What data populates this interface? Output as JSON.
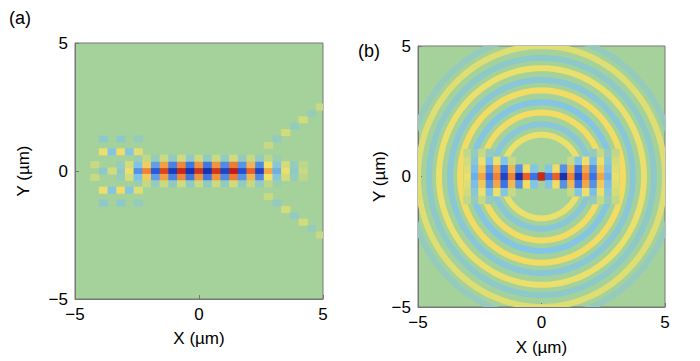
{
  "chart_data": [
    {
      "type": "heatmap",
      "title": "(a)",
      "x_label": "X (µm)",
      "y_label": "Y (µm)",
      "xlim": [
        -5,
        5
      ],
      "ylim": [
        -5,
        5
      ],
      "xticks": [
        {
          "value": -5,
          "label": "−5"
        },
        0,
        5
      ],
      "yticks": [
        {
          "value": -5,
          "label": "−5"
        },
        0,
        5
      ],
      "grid": false,
      "zlim": [
        -1,
        1
      ],
      "cell_width": 0.35,
      "cell_height": 0.25,
      "cells": [
        [
          -3.15,
          0,
          -0.2
        ],
        [
          -2.8,
          0,
          0.3
        ],
        [
          -2.45,
          0,
          -0.5
        ],
        [
          -2.1,
          0,
          0.6
        ],
        [
          -1.75,
          0,
          -0.7
        ],
        [
          -1.4,
          0,
          0.8
        ],
        [
          -1.05,
          0,
          -0.85
        ],
        [
          -0.7,
          0,
          0.9
        ],
        [
          -0.35,
          0,
          -0.9
        ],
        [
          0,
          0,
          0.85
        ],
        [
          0.35,
          0,
          -0.9
        ],
        [
          0.7,
          0,
          0.85
        ],
        [
          1.05,
          0,
          -0.8
        ],
        [
          1.4,
          0,
          0.95
        ],
        [
          1.75,
          0,
          -0.75
        ],
        [
          2.1,
          0,
          0.7
        ],
        [
          2.45,
          0,
          -0.8
        ],
        [
          2.8,
          0,
          0.5
        ],
        [
          3.15,
          0,
          -0.4
        ],
        [
          3.5,
          0,
          0.3
        ],
        [
          3.85,
          0,
          -0.2
        ],
        [
          4.2,
          0,
          0.15
        ],
        [
          -3.15,
          0.25,
          -0.13
        ],
        [
          -2.8,
          0.25,
          0.2
        ],
        [
          -2.45,
          0.25,
          -0.33
        ],
        [
          -2.1,
          0.25,
          0.39
        ],
        [
          -1.75,
          0.25,
          -0.46
        ],
        [
          -1.4,
          0.25,
          0.52
        ],
        [
          -1.05,
          0.25,
          -0.55
        ],
        [
          -0.7,
          0.25,
          0.59
        ],
        [
          -0.35,
          0.25,
          -0.59
        ],
        [
          0,
          0.25,
          0.55
        ],
        [
          0.35,
          0.25,
          -0.59
        ],
        [
          0.7,
          0.25,
          0.55
        ],
        [
          1.05,
          0.25,
          -0.52
        ],
        [
          1.4,
          0.25,
          0.62
        ],
        [
          1.75,
          0.25,
          -0.49
        ],
        [
          2.1,
          0.25,
          0.46
        ],
        [
          2.45,
          0.25,
          -0.52
        ],
        [
          2.8,
          0.25,
          0.33
        ],
        [
          3.15,
          0.25,
          -0.26
        ],
        [
          3.5,
          0.25,
          0.2
        ],
        [
          3.85,
          0.25,
          -0.13
        ],
        [
          4.2,
          0.25,
          0.1
        ],
        [
          -3.15,
          -0.25,
          -0.13
        ],
        [
          -2.8,
          -0.25,
          0.2
        ],
        [
          -2.45,
          -0.25,
          -0.33
        ],
        [
          -2.1,
          -0.25,
          0.39
        ],
        [
          -1.75,
          -0.25,
          -0.46
        ],
        [
          -1.4,
          -0.25,
          0.52
        ],
        [
          -1.05,
          -0.25,
          -0.55
        ],
        [
          -0.7,
          -0.25,
          0.59
        ],
        [
          -0.35,
          -0.25,
          -0.59
        ],
        [
          0,
          -0.25,
          0.55
        ],
        [
          0.35,
          -0.25,
          -0.59
        ],
        [
          0.7,
          -0.25,
          0.55
        ],
        [
          1.05,
          -0.25,
          -0.52
        ],
        [
          1.4,
          -0.25,
          0.62
        ],
        [
          1.75,
          -0.25,
          -0.49
        ],
        [
          2.1,
          -0.25,
          0.46
        ],
        [
          2.45,
          -0.25,
          -0.52
        ],
        [
          2.8,
          -0.25,
          0.33
        ],
        [
          3.15,
          -0.25,
          -0.26
        ],
        [
          3.5,
          -0.25,
          0.2
        ],
        [
          3.85,
          -0.25,
          -0.13
        ],
        [
          4.2,
          -0.25,
          0.1
        ],
        [
          -2.45,
          0.5,
          -0.1
        ],
        [
          -2.1,
          0.5,
          0.12
        ],
        [
          -1.75,
          0.5,
          -0.14
        ],
        [
          -1.4,
          0.5,
          0.16
        ],
        [
          -1.05,
          0.5,
          -0.17
        ],
        [
          -0.7,
          0.5,
          0.18
        ],
        [
          -0.35,
          0.5,
          -0.18
        ],
        [
          0,
          0.5,
          0.17
        ],
        [
          0.35,
          0.5,
          -0.18
        ],
        [
          0.7,
          0.5,
          0.17
        ],
        [
          1.05,
          0.5,
          -0.16
        ],
        [
          1.4,
          0.5,
          0.19
        ],
        [
          1.75,
          0.5,
          -0.15
        ],
        [
          2.1,
          0.5,
          0.14
        ],
        [
          2.45,
          0.5,
          -0.16
        ],
        [
          2.8,
          0.5,
          0.1
        ],
        [
          3.15,
          0.5,
          -0.08
        ],
        [
          -2.45,
          -0.5,
          -0.1
        ],
        [
          -2.1,
          -0.5,
          0.12
        ],
        [
          -1.75,
          -0.5,
          -0.14
        ],
        [
          -1.4,
          -0.5,
          0.16
        ],
        [
          -1.05,
          -0.5,
          -0.17
        ],
        [
          -0.7,
          -0.5,
          0.18
        ],
        [
          -0.35,
          -0.5,
          -0.18
        ],
        [
          0,
          -0.5,
          0.17
        ],
        [
          0.35,
          -0.5,
          -0.18
        ],
        [
          0.7,
          -0.5,
          0.17
        ],
        [
          1.05,
          -0.5,
          -0.16
        ],
        [
          1.4,
          -0.5,
          0.19
        ],
        [
          1.75,
          -0.5,
          -0.15
        ],
        [
          2.1,
          -0.5,
          0.14
        ],
        [
          2.45,
          -0.5,
          -0.16
        ],
        [
          2.8,
          -0.5,
          0.1
        ],
        [
          3.15,
          -0.5,
          -0.08
        ],
        [
          -4.2,
          0.25,
          0.15
        ],
        [
          -4.2,
          -0.25,
          0.15
        ],
        [
          -3.85,
          0,
          -0.2
        ],
        [
          -3.5,
          0,
          0.2
        ],
        [
          -3.85,
          0.75,
          0.3
        ],
        [
          -3.5,
          0.75,
          -0.3
        ],
        [
          -3.15,
          0.75,
          0.35
        ],
        [
          -2.8,
          0.75,
          -0.3
        ],
        [
          -2.45,
          0.75,
          0.25
        ],
        [
          -3.85,
          -0.75,
          0.3
        ],
        [
          -3.5,
          -0.75,
          -0.3
        ],
        [
          -3.15,
          -0.75,
          0.35
        ],
        [
          -2.8,
          -0.75,
          -0.3
        ],
        [
          -2.45,
          -0.75,
          0.25
        ],
        [
          -3.85,
          1.25,
          -0.2
        ],
        [
          -3.15,
          1.25,
          -0.2
        ],
        [
          -2.45,
          1.25,
          -0.15
        ],
        [
          -3.85,
          -1.25,
          -0.2
        ],
        [
          -3.15,
          -1.25,
          -0.2
        ],
        [
          -2.45,
          -1.25,
          -0.15
        ],
        [
          2.8,
          1,
          0.15
        ],
        [
          3.15,
          1.25,
          -0.15
        ],
        [
          3.5,
          1.5,
          0.2
        ],
        [
          3.85,
          1.75,
          -0.15
        ],
        [
          4.2,
          2,
          0.2
        ],
        [
          4.55,
          2.25,
          -0.12
        ],
        [
          4.9,
          2.5,
          0.15
        ],
        [
          2.8,
          -1,
          0.15
        ],
        [
          3.15,
          -1.25,
          -0.15
        ],
        [
          3.5,
          -1.5,
          0.2
        ],
        [
          3.85,
          -1.75,
          -0.15
        ],
        [
          4.2,
          -2,
          0.2
        ],
        [
          4.55,
          -2.25,
          -0.12
        ],
        [
          4.9,
          -2.5,
          0.15
        ]
      ]
    },
    {
      "type": "heatmap",
      "title": "(b)",
      "x_label": "X (µm)",
      "y_label": "Y (µm)",
      "xlim": [
        -5,
        5
      ],
      "ylim": [
        -5,
        5
      ],
      "xticks": [
        {
          "value": -5,
          "label": "−5"
        },
        0,
        5
      ],
      "yticks": [
        {
          "value": -5,
          "label": "−5"
        },
        0,
        5
      ],
      "grid": false,
      "zlim": [
        -1,
        1
      ],
      "cell_width": 0.3,
      "cell_height": 0.3,
      "ring_center": [
        0,
        0
      ],
      "rings": [
        {
          "radius": 1.6,
          "value": 0.3
        },
        {
          "radius": 2.0,
          "value": -0.25
        },
        {
          "radius": 2.45,
          "value": 0.35
        },
        {
          "radius": 2.85,
          "value": -0.3
        },
        {
          "radius": 3.3,
          "value": 0.35
        },
        {
          "radius": 3.7,
          "value": -0.25
        },
        {
          "radius": 4.15,
          "value": 0.3
        },
        {
          "radius": 4.55,
          "value": -0.2
        },
        {
          "radius": 5.0,
          "value": 0.25
        },
        {
          "radius": 5.4,
          "value": -0.15
        }
      ],
      "cells": [
        [
          -3,
          0,
          0.3
        ],
        [
          -2.7,
          0,
          -0.4
        ],
        [
          -2.4,
          0,
          0.5
        ],
        [
          -2.1,
          0,
          -0.6
        ],
        [
          -1.8,
          0,
          0.6
        ],
        [
          -1.5,
          0,
          -0.8
        ],
        [
          -1.2,
          0,
          0.6
        ],
        [
          -0.9,
          0,
          -0.9
        ],
        [
          -0.6,
          0,
          0.7
        ],
        [
          -0.3,
          0,
          -0.6
        ],
        [
          0,
          0,
          0.9
        ],
        [
          0.3,
          0,
          -0.6
        ],
        [
          0.6,
          0,
          0.7
        ],
        [
          0.9,
          0,
          -0.9
        ],
        [
          1.2,
          0,
          0.6
        ],
        [
          1.5,
          0,
          -0.8
        ],
        [
          1.8,
          0,
          0.6
        ],
        [
          2.1,
          0,
          -0.6
        ],
        [
          2.4,
          0,
          0.5
        ],
        [
          2.7,
          0,
          -0.4
        ],
        [
          3,
          0,
          0.3
        ],
        [
          -3,
          0.3,
          0.25
        ],
        [
          -2.7,
          0.3,
          -0.35
        ],
        [
          -2.4,
          0.3,
          0.4
        ],
        [
          -2.1,
          0.3,
          -0.5
        ],
        [
          -1.8,
          0.3,
          0.5
        ],
        [
          -1.5,
          0.3,
          -0.6
        ],
        [
          -1.2,
          0.3,
          0.45
        ],
        [
          -0.9,
          0.3,
          -0.5
        ],
        [
          -0.6,
          0.3,
          0.35
        ],
        [
          -0.3,
          0.3,
          -0.3
        ],
        [
          0.3,
          0.3,
          -0.3
        ],
        [
          0.6,
          0.3,
          0.35
        ],
        [
          0.9,
          0.3,
          -0.5
        ],
        [
          1.2,
          0.3,
          0.45
        ],
        [
          1.5,
          0.3,
          -0.6
        ],
        [
          1.8,
          0.3,
          0.5
        ],
        [
          2.1,
          0.3,
          -0.5
        ],
        [
          2.4,
          0.3,
          0.4
        ],
        [
          2.7,
          0.3,
          -0.35
        ],
        [
          3,
          0.3,
          0.25
        ],
        [
          -3,
          -0.3,
          0.25
        ],
        [
          -2.7,
          -0.3,
          -0.35
        ],
        [
          -2.4,
          -0.3,
          0.4
        ],
        [
          -2.1,
          -0.3,
          -0.5
        ],
        [
          -1.8,
          -0.3,
          0.5
        ],
        [
          -1.5,
          -0.3,
          -0.6
        ],
        [
          -1.2,
          -0.3,
          0.45
        ],
        [
          -0.9,
          -0.3,
          -0.5
        ],
        [
          -0.6,
          -0.3,
          0.35
        ],
        [
          -0.3,
          -0.3,
          -0.3
        ],
        [
          0.3,
          -0.3,
          -0.3
        ],
        [
          0.6,
          -0.3,
          0.35
        ],
        [
          0.9,
          -0.3,
          -0.5
        ],
        [
          1.2,
          -0.3,
          0.45
        ],
        [
          1.5,
          -0.3,
          -0.6
        ],
        [
          1.8,
          -0.3,
          0.5
        ],
        [
          2.1,
          -0.3,
          -0.5
        ],
        [
          2.4,
          -0.3,
          0.4
        ],
        [
          2.7,
          -0.3,
          -0.35
        ],
        [
          3,
          -0.3,
          0.25
        ],
        [
          -3,
          0.6,
          0.2
        ],
        [
          -2.7,
          0.6,
          -0.25
        ],
        [
          -2.4,
          0.6,
          0.3
        ],
        [
          -2.1,
          0.6,
          -0.35
        ],
        [
          -1.8,
          0.6,
          0.3
        ],
        [
          -1.5,
          0.6,
          -0.3
        ],
        [
          -1.2,
          0.6,
          0.15
        ],
        [
          1.2,
          0.6,
          0.15
        ],
        [
          1.5,
          0.6,
          -0.3
        ],
        [
          1.8,
          0.6,
          0.3
        ],
        [
          2.1,
          0.6,
          -0.35
        ],
        [
          2.4,
          0.6,
          0.3
        ],
        [
          2.7,
          0.6,
          -0.25
        ],
        [
          3,
          0.6,
          0.2
        ],
        [
          -3,
          -0.6,
          0.2
        ],
        [
          -2.7,
          -0.6,
          -0.25
        ],
        [
          -2.4,
          -0.6,
          0.3
        ],
        [
          -2.1,
          -0.6,
          -0.35
        ],
        [
          -1.8,
          -0.6,
          0.3
        ],
        [
          -1.5,
          -0.6,
          -0.3
        ],
        [
          -1.2,
          -0.6,
          0.15
        ],
        [
          1.2,
          -0.6,
          0.15
        ],
        [
          1.5,
          -0.6,
          -0.3
        ],
        [
          1.8,
          -0.6,
          0.3
        ],
        [
          2.1,
          -0.6,
          -0.35
        ],
        [
          2.4,
          -0.6,
          0.3
        ],
        [
          2.7,
          -0.6,
          -0.25
        ],
        [
          3,
          -0.6,
          0.2
        ],
        [
          -3,
          0.9,
          0.12
        ],
        [
          -2.7,
          0.9,
          -0.15
        ],
        [
          -2.4,
          0.9,
          0.15
        ],
        [
          -2.1,
          0.9,
          -0.15
        ],
        [
          2.1,
          0.9,
          -0.15
        ],
        [
          2.4,
          0.9,
          0.15
        ],
        [
          2.7,
          0.9,
          -0.15
        ],
        [
          3,
          0.9,
          0.12
        ],
        [
          -3,
          -0.9,
          0.12
        ],
        [
          -2.7,
          -0.9,
          -0.15
        ],
        [
          -2.4,
          -0.9,
          0.15
        ],
        [
          -2.1,
          -0.9,
          -0.15
        ],
        [
          2.1,
          -0.9,
          -0.15
        ],
        [
          2.4,
          -0.9,
          0.15
        ],
        [
          2.7,
          -0.9,
          -0.15
        ],
        [
          3,
          -0.9,
          0.12
        ]
      ]
    }
  ]
}
